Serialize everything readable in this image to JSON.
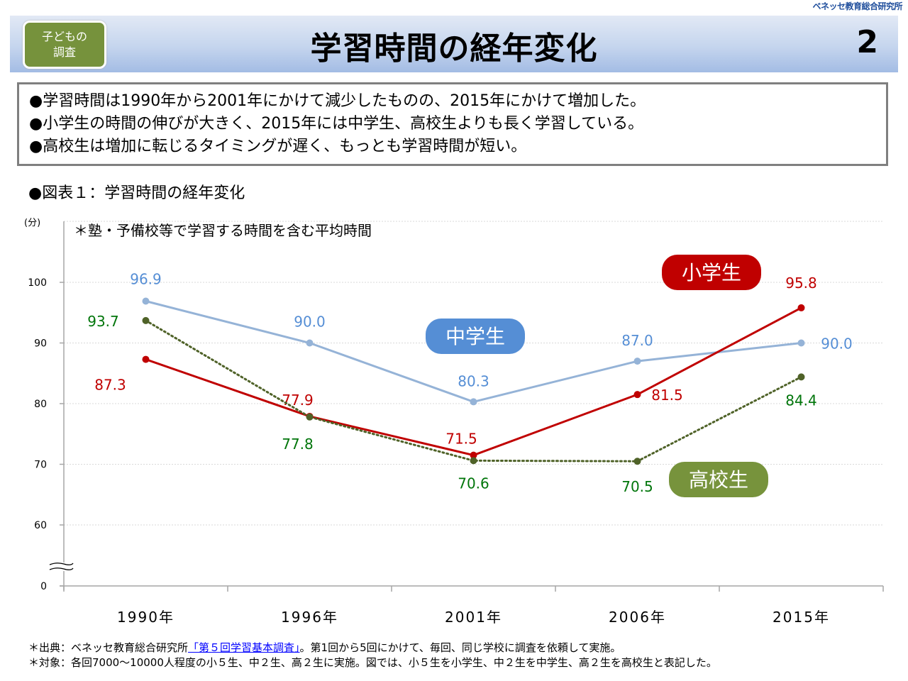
{
  "org_name": "ベネッセ教育総合研究所",
  "header": {
    "badge_line1": "子どもの",
    "badge_line2": "調査",
    "title": "学習時間の経年変化",
    "page_number": "2"
  },
  "summary": [
    "●学習時間は1990年から2001年にかけて減少したものの、2015年にかけて増加した。",
    "●小学生の時間の伸びが大きく、2015年には中学生、高校生よりも長く学習している。",
    "●高校生は増加に転じるタイミングが遅く、もっとも学習時間が短い。"
  ],
  "figure_title": "●図表１：学習時間の経年変化",
  "chart_data": {
    "type": "line",
    "unit_label": "(分)",
    "annotation": "＊塾・予備校等で学習する時間を含む平均時間",
    "categories": [
      "1990年",
      "1996年",
      "2001年",
      "2006年",
      "2015年"
    ],
    "y_ticks": [
      0,
      60,
      70,
      80,
      90,
      100
    ],
    "ylim": [
      55,
      105
    ],
    "axis_break": true,
    "grid": "dotted horizontal",
    "series": [
      {
        "name": "中学生",
        "color": "#95b3d7",
        "label_color": "#558ed5",
        "badge_color": "#558ed5",
        "dash": "solid",
        "values": [
          96.9,
          90.0,
          80.3,
          87.0,
          90.0
        ],
        "labels": [
          "96.9",
          "90.0",
          "80.3",
          "87.0",
          "90.0"
        ]
      },
      {
        "name": "小学生",
        "color": "#c00000",
        "label_color": "#c00000",
        "badge_color": "#c00000",
        "dash": "solid",
        "values": [
          87.3,
          77.9,
          71.5,
          81.5,
          95.8
        ],
        "labels": [
          "87.3",
          "77.9",
          "71.5",
          "81.5",
          "95.8"
        ]
      },
      {
        "name": "高校生",
        "color": "#4f6228",
        "label_color": "#00750a",
        "badge_color": "#77933c",
        "dash": "dotted",
        "values": [
          93.7,
          77.8,
          70.6,
          70.5,
          84.4
        ],
        "labels": [
          "93.7",
          "77.8",
          "70.6",
          "70.5",
          "84.4"
        ]
      }
    ]
  },
  "notes": {
    "source_prefix": "＊出典：ベネッセ教育総合研究所",
    "source_link": "「第５回学習基本調査」",
    "source_suffix": "。第1回から5回にかけて、毎回、同じ学校に調査を依頼して実施。",
    "target": "＊対象：各回7000～10000人程度の小５生、中２生、高２生に実施。図では、小５生を小学生、中２生を中学生、高２生を高校生と表記した。"
  }
}
